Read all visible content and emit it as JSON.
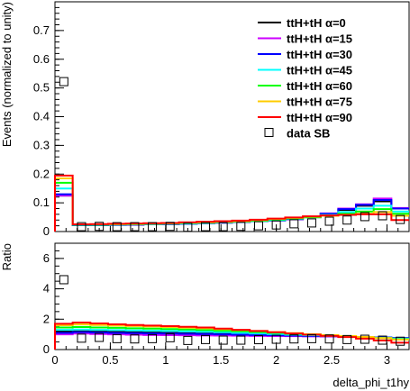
{
  "figure": {
    "xlabel": "delta_phi_t1hy",
    "x_ticks": [
      "0",
      "0.5",
      "1",
      "1.5",
      "2",
      "2.5",
      "3"
    ]
  },
  "chart_data": [
    {
      "type": "line",
      "subtype": "step-histogram",
      "panel": "top",
      "xlabel": "delta_phi_t1hy",
      "ylabel": "Events (normalized to unity)",
      "xlim": [
        0,
        3.2
      ],
      "ylim": [
        0,
        0.8
      ],
      "y_ticks": [
        0,
        0.1,
        0.2,
        0.3,
        0.4,
        0.5,
        0.6,
        0.7
      ],
      "y_tick_labels": [
        "0",
        "0.1",
        "0.2",
        "0.3",
        "0.4",
        "0.5",
        "0.6",
        "0.7"
      ],
      "bin_edges": [
        0,
        0.16,
        0.32,
        0.48,
        0.64,
        0.8,
        0.96,
        1.12,
        1.28,
        1.44,
        1.6,
        1.76,
        1.92,
        2.08,
        2.24,
        2.4,
        2.56,
        2.72,
        2.88,
        3.04,
        3.2
      ],
      "legend_position": "top-right",
      "series": [
        {
          "name": "ttH+tH α=0",
          "color": "#000000",
          "values": [
            0.125,
            0.022,
            0.022,
            0.023,
            0.024,
            0.025,
            0.026,
            0.027,
            0.029,
            0.031,
            0.033,
            0.036,
            0.039,
            0.043,
            0.05,
            0.06,
            0.075,
            0.09,
            0.105,
            0.08
          ]
        },
        {
          "name": "ttH+tH α=15",
          "color": "#cc00ff",
          "values": [
            0.125,
            0.022,
            0.022,
            0.023,
            0.024,
            0.025,
            0.026,
            0.027,
            0.029,
            0.031,
            0.033,
            0.036,
            0.039,
            0.043,
            0.052,
            0.063,
            0.08,
            0.095,
            0.115,
            0.082
          ]
        },
        {
          "name": "ttH+tH α=30",
          "color": "#0000ff",
          "values": [
            0.13,
            0.022,
            0.022,
            0.023,
            0.024,
            0.025,
            0.026,
            0.027,
            0.029,
            0.031,
            0.033,
            0.036,
            0.039,
            0.043,
            0.051,
            0.062,
            0.078,
            0.093,
            0.11,
            0.08
          ]
        },
        {
          "name": "ttH+tH α=45",
          "color": "#00ffff",
          "values": [
            0.15,
            0.023,
            0.023,
            0.024,
            0.025,
            0.026,
            0.027,
            0.028,
            0.03,
            0.032,
            0.034,
            0.037,
            0.04,
            0.045,
            0.05,
            0.058,
            0.068,
            0.08,
            0.09,
            0.07
          ]
        },
        {
          "name": "ttH+tH α=60",
          "color": "#00ff00",
          "values": [
            0.17,
            0.024,
            0.024,
            0.025,
            0.026,
            0.027,
            0.028,
            0.03,
            0.031,
            0.033,
            0.035,
            0.038,
            0.042,
            0.046,
            0.05,
            0.055,
            0.062,
            0.07,
            0.078,
            0.062
          ]
        },
        {
          "name": "ttH+tH α=75",
          "color": "#ffcc00",
          "values": [
            0.185,
            0.025,
            0.025,
            0.026,
            0.027,
            0.028,
            0.029,
            0.031,
            0.032,
            0.034,
            0.036,
            0.04,
            0.044,
            0.048,
            0.052,
            0.055,
            0.058,
            0.062,
            0.068,
            0.055
          ]
        },
        {
          "name": "ttH+tH α=90",
          "color": "#ff0000",
          "values": [
            0.195,
            0.025,
            0.026,
            0.027,
            0.028,
            0.029,
            0.03,
            0.032,
            0.034,
            0.036,
            0.038,
            0.041,
            0.045,
            0.049,
            0.053,
            0.056,
            0.058,
            0.06,
            0.06,
            0.04
          ]
        },
        {
          "name": "data SB",
          "color": "#000000",
          "marker": "open-square",
          "x": [
            0.08,
            0.24,
            0.4,
            0.56,
            0.72,
            0.88,
            1.04,
            1.2,
            1.36,
            1.52,
            1.68,
            1.84,
            2.0,
            2.16,
            2.32,
            2.48,
            2.64,
            2.8,
            2.96,
            3.12
          ],
          "values": [
            0.522,
            0.017,
            0.018,
            0.017,
            0.017,
            0.017,
            0.018,
            0.015,
            0.017,
            0.017,
            0.018,
            0.02,
            0.023,
            0.027,
            0.03,
            0.036,
            0.04,
            0.052,
            0.055,
            0.042
          ]
        }
      ]
    },
    {
      "type": "line",
      "subtype": "step-histogram",
      "panel": "bottom",
      "ylabel": "Ratio",
      "xlabel": "delta_phi_t1hy",
      "xlim": [
        0,
        3.2
      ],
      "ylim": [
        0,
        7
      ],
      "y_ticks": [
        0,
        2,
        4,
        6
      ],
      "y_tick_labels": [
        "0",
        "2",
        "4",
        "6"
      ],
      "x_ticks": [
        0,
        0.5,
        1,
        1.5,
        2,
        2.5,
        3
      ],
      "bin_edges": [
        0,
        0.16,
        0.32,
        0.48,
        0.64,
        0.8,
        0.96,
        1.12,
        1.28,
        1.44,
        1.6,
        1.76,
        1.92,
        2.08,
        2.24,
        2.4,
        2.56,
        2.72,
        2.88,
        3.04,
        3.2
      ],
      "series": [
        {
          "color": "#000000",
          "values": [
            1.2,
            1.2,
            1.18,
            1.16,
            1.14,
            1.12,
            1.1,
            1.08,
            1.06,
            1.04,
            1.0,
            0.98,
            0.96,
            0.94,
            0.92,
            0.9,
            0.86,
            0.82,
            0.78,
            0.75
          ]
        },
        {
          "color": "#cc00ff",
          "values": [
            1.0,
            1.05,
            1.02,
            1.0,
            0.98,
            0.96,
            0.95,
            0.94,
            0.93,
            0.92,
            0.91,
            0.9,
            0.89,
            0.88,
            0.87,
            0.86,
            0.84,
            0.8,
            0.77,
            0.74
          ]
        },
        {
          "color": "#0000ff",
          "values": [
            1.1,
            1.15,
            1.12,
            1.1,
            1.08,
            1.06,
            1.05,
            1.04,
            1.02,
            1.0,
            0.98,
            0.96,
            0.94,
            0.92,
            0.9,
            0.88,
            0.86,
            0.83,
            0.8,
            0.76
          ]
        },
        {
          "color": "#00ffff",
          "values": [
            1.3,
            1.32,
            1.3,
            1.28,
            1.26,
            1.24,
            1.22,
            1.2,
            1.17,
            1.14,
            1.1,
            1.06,
            1.02,
            0.98,
            0.94,
            0.9,
            0.86,
            0.82,
            0.78,
            0.72
          ]
        },
        {
          "color": "#00ff00",
          "values": [
            1.45,
            1.48,
            1.45,
            1.43,
            1.4,
            1.38,
            1.35,
            1.32,
            1.28,
            1.24,
            1.2,
            1.15,
            1.1,
            1.04,
            0.99,
            0.94,
            0.88,
            0.82,
            0.76,
            0.68
          ]
        },
        {
          "color": "#ffcc00",
          "values": [
            1.6,
            1.65,
            1.62,
            1.58,
            1.55,
            1.52,
            1.48,
            1.44,
            1.4,
            1.34,
            1.28,
            1.22,
            1.15,
            1.08,
            1.01,
            0.95,
            0.89,
            0.83,
            0.76,
            0.66
          ]
        },
        {
          "color": "#ff0000",
          "values": [
            1.7,
            1.78,
            1.72,
            1.66,
            1.62,
            1.58,
            1.54,
            1.5,
            1.45,
            1.38,
            1.3,
            1.22,
            1.14,
            1.06,
            0.98,
            0.9,
            0.82,
            0.72,
            0.6,
            0.45
          ]
        },
        {
          "name": "data SB",
          "color": "#000000",
          "marker": "open-square",
          "x": [
            0.08,
            0.24,
            0.4,
            0.56,
            0.72,
            0.88,
            1.04,
            1.2,
            1.36,
            1.52,
            1.68,
            1.84,
            2.0,
            2.16,
            2.32,
            2.48,
            2.64,
            2.8,
            2.96,
            3.12
          ],
          "values": [
            4.6,
            0.75,
            0.8,
            0.72,
            0.7,
            0.72,
            0.78,
            0.6,
            0.66,
            0.62,
            0.62,
            0.65,
            0.68,
            0.7,
            0.72,
            0.7,
            0.66,
            0.68,
            0.62,
            0.55
          ]
        }
      ]
    }
  ]
}
